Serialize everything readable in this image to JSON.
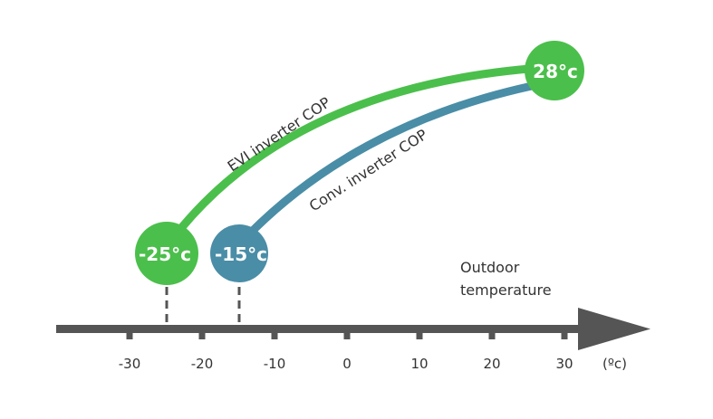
{
  "chart_data": {
    "type": "line",
    "x_ticks": [
      -30,
      -20,
      -10,
      0,
      10,
      20,
      30
    ],
    "x_tick_labels": [
      "-30",
      "-20",
      "-10",
      "0",
      "10",
      "20",
      "30"
    ],
    "x_range": [
      -40,
      42
    ],
    "x_unit": "(ºc)",
    "xlabel_line1": "Outdoor",
    "xlabel_line2": "temperature",
    "series": [
      {
        "name": "EVI inverter COP",
        "color": "#4bbf4b",
        "start_x": -25,
        "end_x": 28,
        "start_label": "-25°c",
        "end_label": "28°c"
      },
      {
        "name": "Conv. inverter COP",
        "color": "#4a8da6",
        "start_x": -15,
        "end_x": 28,
        "start_label": "-15°c"
      }
    ],
    "colors": {
      "axis": "#555555",
      "evi": "#4bbf4b",
      "conv": "#4a8da6"
    }
  }
}
